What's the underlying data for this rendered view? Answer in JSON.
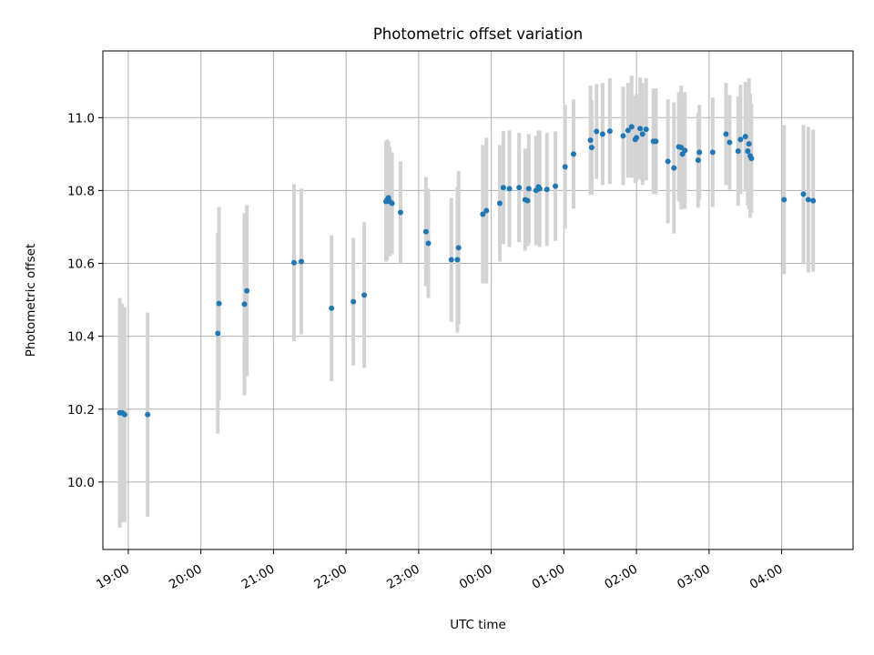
{
  "chart_data": {
    "type": "scatter",
    "title": "Photometric offset variation",
    "xlabel": "UTC time",
    "ylabel": "Photometric offset",
    "grid": true,
    "x_ticks": [
      "19:00",
      "20:00",
      "21:00",
      "22:00",
      "23:00",
      "00:00",
      "01:00",
      "02:00",
      "03:00",
      "04:00"
    ],
    "y_ticks": [
      "10.0",
      "10.2",
      "10.4",
      "10.6",
      "10.8",
      "11.0"
    ],
    "ylim": [
      9.815,
      11.183
    ],
    "xlim": [
      "18:39",
      "04:59"
    ],
    "colors": {
      "points": "#1f77b4",
      "errorbars": "#d3d3d3",
      "grid": "#b0b0b0"
    },
    "series": [
      {
        "x": [
          "18:53",
          "18:55",
          "18:57",
          "19:16",
          "20:14",
          "20:15",
          "20:36",
          "20:38",
          "21:17",
          "21:23",
          "21:48",
          "22:06",
          "22:15",
          "22:33",
          "22:34",
          "22:35",
          "22:36",
          "22:38",
          "22:45",
          "23:06",
          "23:08",
          "23:27",
          "23:32",
          "23:33",
          "23:53",
          "23:56",
          "00:07",
          "00:10",
          "00:15",
          "00:23",
          "00:28",
          "00:30",
          "00:31",
          "00:37",
          "00:39",
          "00:40",
          "00:46",
          "00:53",
          "01:01",
          "01:08",
          "01:22",
          "01:23",
          "01:27",
          "01:32",
          "01:38",
          "01:49",
          "01:53",
          "01:56",
          "01:59",
          "02:00",
          "02:03",
          "02:05",
          "02:08",
          "02:14",
          "02:16",
          "02:26",
          "02:31",
          "02:35",
          "02:37",
          "02:38",
          "02:40",
          "02:51",
          "02:52",
          "03:03",
          "03:14",
          "03:17",
          "03:24",
          "03:26",
          "03:30",
          "03:32",
          "03:33",
          "03:34",
          "03:35"
        ],
        "y": [
          10.19,
          10.19,
          10.185,
          10.185,
          10.408,
          10.49,
          10.488,
          10.525,
          10.602,
          10.605,
          10.477,
          10.495,
          10.513,
          10.77,
          10.775,
          10.78,
          10.77,
          10.765,
          10.74,
          10.687,
          10.655,
          10.61,
          10.61,
          10.643,
          10.735,
          10.745,
          10.765,
          10.808,
          10.805,
          10.808,
          10.775,
          10.772,
          10.805,
          10.8,
          10.81,
          10.805,
          10.803,
          10.812,
          10.865,
          10.9,
          10.938,
          10.918,
          10.962,
          10.955,
          10.963,
          10.95,
          10.965,
          10.975,
          10.94,
          10.945,
          10.97,
          10.955,
          10.968,
          10.935,
          10.935,
          10.88,
          10.862,
          10.92,
          10.918,
          10.9,
          10.91,
          10.883,
          10.905,
          10.905,
          10.955,
          10.932,
          10.908,
          10.94,
          10.948,
          10.908,
          10.928,
          10.895,
          10.888
        ],
        "yerr": [
          0.315,
          0.3,
          0.295,
          0.28,
          0.275,
          0.265,
          0.25,
          0.235,
          0.215,
          0.2,
          0.2,
          0.175,
          0.2,
          0.165,
          0.165,
          0.155,
          0.15,
          0.14,
          0.14,
          0.15,
          0.15,
          0.17,
          0.2,
          0.21,
          0.19,
          0.2,
          0.16,
          0.155,
          0.16,
          0.15,
          0.14,
          0.125,
          0.15,
          0.15,
          0.155,
          0.16,
          0.155,
          0.15,
          0.17,
          0.15,
          0.15,
          0.13,
          0.13,
          0.14,
          0.145,
          0.135,
          0.13,
          0.14,
          0.12,
          0.12,
          0.14,
          0.14,
          0.14,
          0.145,
          0.145,
          0.17,
          0.18,
          0.15,
          0.17,
          0.15,
          0.16,
          0.13,
          0.13,
          0.15,
          0.14,
          0.13,
          0.15,
          0.15,
          0.15,
          0.15,
          0.18,
          0.17,
          0.15
        ]
      },
      {
        "x": [
          "04:02",
          "04:18",
          "04:22",
          "04:26"
        ],
        "y": [
          10.775,
          10.79,
          10.775,
          10.772
        ],
        "yerr": [
          0.205,
          0.19,
          0.2,
          0.195
        ]
      }
    ]
  }
}
